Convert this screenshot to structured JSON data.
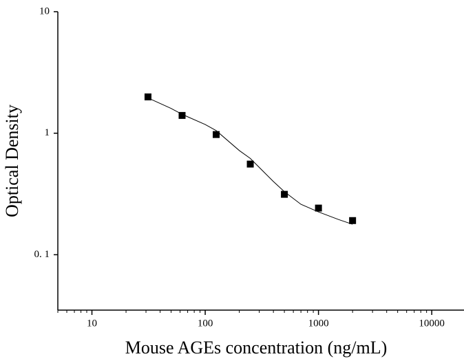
{
  "chart_data": {
    "type": "scatter",
    "xlabel": "Mouse AGEs concentration (ng/mL)",
    "ylabel": "Optical Density",
    "xscale": "log",
    "yscale": "log",
    "xlim": [
      5,
      20000
    ],
    "ylim": [
      0.035,
      10
    ],
    "xticks": [
      10,
      100,
      1000,
      10000
    ],
    "yticks": [
      10,
      1,
      {
        "value": 0.1,
        "label": "0. 1"
      }
    ],
    "x_minor_ticks": true,
    "series": [
      {
        "color": "#000000",
        "marker": "square",
        "x": [
          31.25,
          62.5,
          125,
          250,
          500,
          1000,
          2000
        ],
        "values": [
          1.99,
          1.4,
          0.975,
          0.557,
          0.314,
          0.242,
          0.191
        ]
      },
      {
        "color": "#000000",
        "marker": "line",
        "x": [
          31.25,
          50,
          62.5,
          100,
          125,
          200,
          250,
          400,
          500,
          700,
          1000,
          1500,
          2000
        ],
        "values": [
          1.95,
          1.6,
          1.43,
          1.18,
          1.05,
          0.72,
          0.62,
          0.4,
          0.33,
          0.26,
          0.225,
          0.195,
          0.178
        ]
      }
    ]
  }
}
